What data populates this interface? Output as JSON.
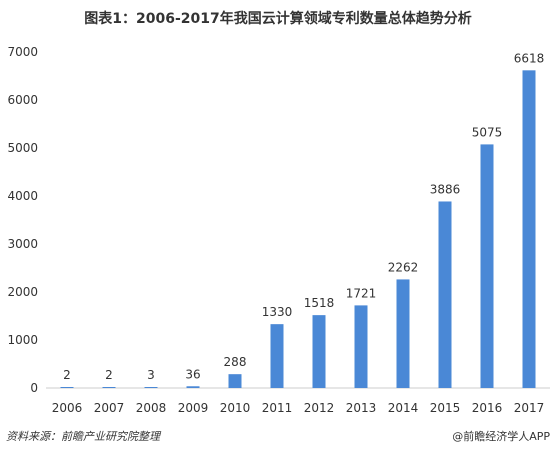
{
  "title": "图表1：2006-2017年我国云计算领域专利数量总体趋势分析",
  "source": "资料来源：前瞻产业研究院整理",
  "brand": "@前瞻经济学人APP",
  "colors": {
    "bar": "#4a88d6",
    "axis": "#cccccc",
    "text": "#333333"
  },
  "chart_data": {
    "type": "bar",
    "title": "图表1：2006-2017年我国云计算领域专利数量总体趋势分析",
    "categories": [
      "2006",
      "2007",
      "2008",
      "2009",
      "2010",
      "2011",
      "2012",
      "2013",
      "2014",
      "2015",
      "2016",
      "2017"
    ],
    "values": [
      2,
      2,
      3,
      36,
      288,
      1330,
      1518,
      1721,
      2262,
      3886,
      5075,
      6618
    ],
    "yticks": [
      0,
      1000,
      2000,
      3000,
      4000,
      5000,
      6000,
      7000
    ],
    "ylim": [
      0,
      7000
    ],
    "xlabel": "",
    "ylabel": "",
    "grid": false,
    "legend": "none"
  }
}
